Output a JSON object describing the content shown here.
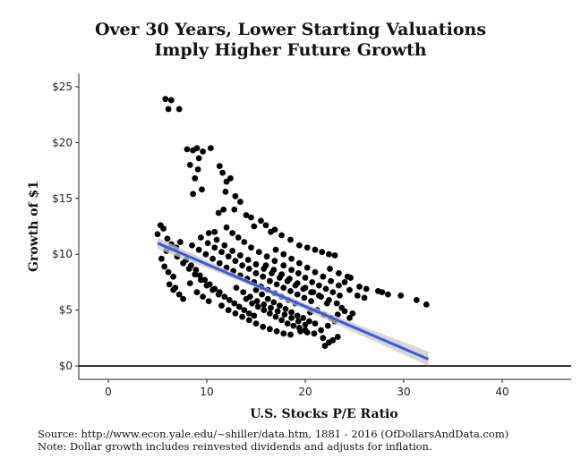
{
  "chart_data": {
    "type": "scatter",
    "title": "Over 30 Years, Lower Starting Valuations Imply Higher Future Growth",
    "title_lines": [
      "Over 30 Years, Lower Starting Valuations",
      "Imply Higher Future Growth"
    ],
    "xlabel": "U.S. Stocks P/E Ratio",
    "ylabel": "Growth of $1",
    "xlim": [
      -3,
      47
    ],
    "ylim": [
      -1.2,
      26.2
    ],
    "x_ticks": [
      0,
      10,
      20,
      30,
      40
    ],
    "x_tick_labels": [
      "0",
      "10",
      "20",
      "30",
      "40"
    ],
    "y_ticks": [
      0,
      5,
      10,
      15,
      20,
      25
    ],
    "y_tick_labels": [
      "$0",
      "$5",
      "$10",
      "$15",
      "$20",
      "$25"
    ],
    "hline": 0,
    "grid": false,
    "point_color": "#000000",
    "trend_color": "#3a5bd9",
    "band_color": "#c8c8c8",
    "trend_line": {
      "x": [
        5,
        32.5
      ],
      "y": [
        11.0,
        0.6
      ]
    },
    "confidence_band": {
      "x": [
        5,
        15,
        25,
        32.5
      ],
      "lower": [
        10.5,
        7.0,
        3.0,
        0.0
      ],
      "upper": [
        11.5,
        7.4,
        3.8,
        1.3
      ]
    },
    "series": [
      {
        "points": [
          [
            5.8,
            23.9
          ],
          [
            6.4,
            23.8
          ],
          [
            6.1,
            23.0
          ],
          [
            7.2,
            23.0
          ],
          [
            8.0,
            19.4
          ],
          [
            8.6,
            19.3
          ],
          [
            9.0,
            19.5
          ],
          [
            9.6,
            19.2
          ],
          [
            10.4,
            19.5
          ],
          [
            8.3,
            18.0
          ],
          [
            9.1,
            17.6
          ],
          [
            8.8,
            16.8
          ],
          [
            8.6,
            15.4
          ],
          [
            9.5,
            15.8
          ],
          [
            9.2,
            18.6
          ],
          [
            11.3,
            17.9
          ],
          [
            11.6,
            17.3
          ],
          [
            12.0,
            16.5
          ],
          [
            12.4,
            16.8
          ],
          [
            11.9,
            15.6
          ],
          [
            12.9,
            15.2
          ],
          [
            13.4,
            14.7
          ],
          [
            12.8,
            14.0
          ],
          [
            11.7,
            14.0
          ],
          [
            11.2,
            13.7
          ],
          [
            10.8,
            12.0
          ],
          [
            14.0,
            13.5
          ],
          [
            14.5,
            13.3
          ],
          [
            15.5,
            13.0
          ],
          [
            16.0,
            12.6
          ],
          [
            16.9,
            12.2
          ],
          [
            17.6,
            11.7
          ],
          [
            18.5,
            11.3
          ],
          [
            19.4,
            10.8
          ],
          [
            20.2,
            10.6
          ],
          [
            21.0,
            10.4
          ],
          [
            21.7,
            10.2
          ],
          [
            22.4,
            10.0
          ],
          [
            23.0,
            9.9
          ],
          [
            14.8,
            12.5
          ],
          [
            16.5,
            12.0
          ],
          [
            12.0,
            12.4
          ],
          [
            12.6,
            11.9
          ],
          [
            13.2,
            11.5
          ],
          [
            13.8,
            11.1
          ],
          [
            14.5,
            10.6
          ],
          [
            15.3,
            10.2
          ],
          [
            16.1,
            9.8
          ],
          [
            16.9,
            9.4
          ],
          [
            17.8,
            9.0
          ],
          [
            18.6,
            8.6
          ],
          [
            19.3,
            8.3
          ],
          [
            20.0,
            7.9
          ],
          [
            20.7,
            7.5
          ],
          [
            21.4,
            7.2
          ],
          [
            22.1,
            6.9
          ],
          [
            22.8,
            6.6
          ],
          [
            23.5,
            6.3
          ],
          [
            22.5,
            8.7
          ],
          [
            23.4,
            8.3
          ],
          [
            24.3,
            8.0
          ],
          [
            24.6,
            7.9
          ],
          [
            25.5,
            7.1
          ],
          [
            26.2,
            6.9
          ],
          [
            27.4,
            6.7
          ],
          [
            27.8,
            6.6
          ],
          [
            28.4,
            6.4
          ],
          [
            29.7,
            6.3
          ],
          [
            31.3,
            5.9
          ],
          [
            32.3,
            5.5
          ],
          [
            24.5,
            6.8
          ],
          [
            25.3,
            6.3
          ],
          [
            26.0,
            6.1
          ],
          [
            5.0,
            11.8
          ],
          [
            5.3,
            12.6
          ],
          [
            5.6,
            12.3
          ],
          [
            6.0,
            11.4
          ],
          [
            6.4,
            10.9
          ],
          [
            6.9,
            10.6
          ],
          [
            7.3,
            11.1
          ],
          [
            5.9,
            10.3
          ],
          [
            5.4,
            9.6
          ],
          [
            5.7,
            8.9
          ],
          [
            6.1,
            8.4
          ],
          [
            6.6,
            8.0
          ],
          [
            6.2,
            7.3
          ],
          [
            6.6,
            6.8
          ],
          [
            7.2,
            6.4
          ],
          [
            7.6,
            6.0
          ],
          [
            6.8,
            7.0
          ],
          [
            7.9,
            9.5
          ],
          [
            8.4,
            9.0
          ],
          [
            8.9,
            8.6
          ],
          [
            9.3,
            8.1
          ],
          [
            9.8,
            7.7
          ],
          [
            10.3,
            7.3
          ],
          [
            10.8,
            6.9
          ],
          [
            11.3,
            6.6
          ],
          [
            11.8,
            6.2
          ],
          [
            12.3,
            5.9
          ],
          [
            12.8,
            5.6
          ],
          [
            13.3,
            5.3
          ],
          [
            13.8,
            5.0
          ],
          [
            14.3,
            4.7
          ],
          [
            14.8,
            4.5
          ],
          [
            8.5,
            10.8
          ],
          [
            9.2,
            10.4
          ],
          [
            9.9,
            10.0
          ],
          [
            10.6,
            9.6
          ],
          [
            11.3,
            9.2
          ],
          [
            12.0,
            8.8
          ],
          [
            12.7,
            8.5
          ],
          [
            13.4,
            8.1
          ],
          [
            14.1,
            7.8
          ],
          [
            14.8,
            7.5
          ],
          [
            15.5,
            7.1
          ],
          [
            16.2,
            6.8
          ],
          [
            16.9,
            6.5
          ],
          [
            17.6,
            6.2
          ],
          [
            18.3,
            5.9
          ],
          [
            19.0,
            5.6
          ],
          [
            9.4,
            11.5
          ],
          [
            10.1,
            11.0
          ],
          [
            10.8,
            10.6
          ],
          [
            11.5,
            10.2
          ],
          [
            12.2,
            9.8
          ],
          [
            12.9,
            9.4
          ],
          [
            13.6,
            9.0
          ],
          [
            14.3,
            8.7
          ],
          [
            15.0,
            8.3
          ],
          [
            15.7,
            8.0
          ],
          [
            16.4,
            7.6
          ],
          [
            17.1,
            7.3
          ],
          [
            17.8,
            7.0
          ],
          [
            18.5,
            6.7
          ],
          [
            19.2,
            6.4
          ],
          [
            19.9,
            6.1
          ],
          [
            20.6,
            5.8
          ],
          [
            10.2,
            11.9
          ],
          [
            11.0,
            11.3
          ],
          [
            11.8,
            10.8
          ],
          [
            12.6,
            10.3
          ],
          [
            13.4,
            9.9
          ],
          [
            14.2,
            9.5
          ],
          [
            15.0,
            9.1
          ],
          [
            15.8,
            8.7
          ],
          [
            16.6,
            8.3
          ],
          [
            17.4,
            7.9
          ],
          [
            18.2,
            7.6
          ],
          [
            19.0,
            7.2
          ],
          [
            19.8,
            6.9
          ],
          [
            20.6,
            6.6
          ],
          [
            21.4,
            6.3
          ],
          [
            14.0,
            6.0
          ],
          [
            14.6,
            5.6
          ],
          [
            15.2,
            5.3
          ],
          [
            15.8,
            5.0
          ],
          [
            16.4,
            4.7
          ],
          [
            17.0,
            4.4
          ],
          [
            17.6,
            4.1
          ],
          [
            18.2,
            3.8
          ],
          [
            18.8,
            3.6
          ],
          [
            19.4,
            3.4
          ],
          [
            20.0,
            3.2
          ],
          [
            15.0,
            6.8
          ],
          [
            15.6,
            6.4
          ],
          [
            16.2,
            6.0
          ],
          [
            16.8,
            5.7
          ],
          [
            17.4,
            5.4
          ],
          [
            18.0,
            5.1
          ],
          [
            18.6,
            4.8
          ],
          [
            19.2,
            4.5
          ],
          [
            19.8,
            4.3
          ],
          [
            20.4,
            4.0
          ],
          [
            21.0,
            3.8
          ],
          [
            11.5,
            5.4
          ],
          [
            12.2,
            5.0
          ],
          [
            12.9,
            4.7
          ],
          [
            13.6,
            4.4
          ],
          [
            14.3,
            4.1
          ],
          [
            15.0,
            3.8
          ],
          [
            15.7,
            3.5
          ],
          [
            16.4,
            3.3
          ],
          [
            17.1,
            3.1
          ],
          [
            17.8,
            2.9
          ],
          [
            18.5,
            2.8
          ],
          [
            13.0,
            7.0
          ],
          [
            13.7,
            6.6
          ],
          [
            14.4,
            6.2
          ],
          [
            15.1,
            5.8
          ],
          [
            15.8,
            5.5
          ],
          [
            16.5,
            5.2
          ],
          [
            17.2,
            4.9
          ],
          [
            17.9,
            4.6
          ],
          [
            18.6,
            4.3
          ],
          [
            19.3,
            4.0
          ],
          [
            20.0,
            3.7
          ],
          [
            19.5,
            3.1
          ],
          [
            20.2,
            3.0
          ],
          [
            20.9,
            2.9
          ],
          [
            21.6,
            3.2
          ],
          [
            22.3,
            3.6
          ],
          [
            23.0,
            4.0
          ],
          [
            21.8,
            2.5
          ],
          [
            22.4,
            2.1
          ],
          [
            23.3,
            2.6
          ],
          [
            22.0,
            1.8
          ],
          [
            22.8,
            2.3
          ],
          [
            21.2,
            5.0
          ],
          [
            21.9,
            4.6
          ],
          [
            22.6,
            4.3
          ],
          [
            23.3,
            4.6
          ],
          [
            24.0,
            4.9
          ],
          [
            24.5,
            4.3
          ],
          [
            23.7,
            5.2
          ],
          [
            20.5,
            4.8
          ],
          [
            22.2,
            5.6
          ],
          [
            24.8,
            4.7
          ],
          [
            17.0,
            10.4
          ],
          [
            17.8,
            10.0
          ],
          [
            18.6,
            9.6
          ],
          [
            19.4,
            9.2
          ],
          [
            20.2,
            8.8
          ],
          [
            21.0,
            8.4
          ],
          [
            21.8,
            8.0
          ],
          [
            22.6,
            7.6
          ],
          [
            23.4,
            7.2
          ],
          [
            24.0,
            7.5
          ],
          [
            16.0,
            9.0
          ],
          [
            16.8,
            8.6
          ],
          [
            17.6,
            8.2
          ],
          [
            18.4,
            7.8
          ],
          [
            19.2,
            7.4
          ],
          [
            20.0,
            7.0
          ],
          [
            20.8,
            6.6
          ],
          [
            21.6,
            6.2
          ],
          [
            22.4,
            5.9
          ],
          [
            23.2,
            5.6
          ],
          [
            7.0,
            9.8
          ],
          [
            7.6,
            9.2
          ],
          [
            8.2,
            8.7
          ],
          [
            8.8,
            8.2
          ],
          [
            9.4,
            7.7
          ],
          [
            10.0,
            7.2
          ],
          [
            10.6,
            6.8
          ],
          [
            11.2,
            6.4
          ],
          [
            9.0,
            6.6
          ],
          [
            9.6,
            6.2
          ],
          [
            10.2,
            5.8
          ],
          [
            8.3,
            7.4
          ]
        ]
      }
    ]
  },
  "source_note": "Source:  http://www.econ.yale.edu/~shiller/data.htm, 1881 - 2016 (OfDollarsAndData.com)",
  "footnote": "Note:  Dollar growth includes reinvested dividends and adjusts for inflation."
}
